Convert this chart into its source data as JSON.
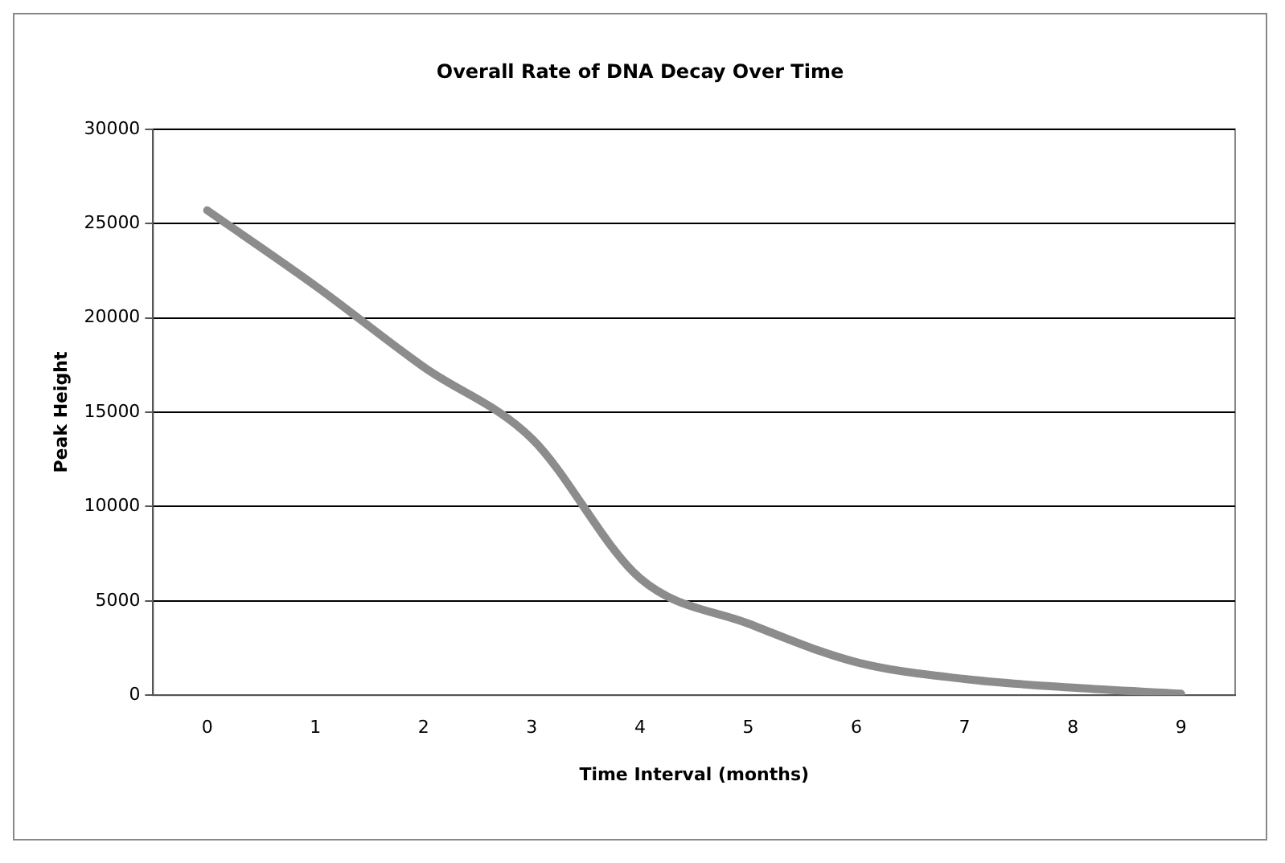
{
  "chart_data": {
    "type": "line",
    "title": "Overall Rate of DNA Decay Over Time",
    "xlabel": "Time Interval (months)",
    "ylabel": "Peak Height",
    "categories": [
      "0",
      "1",
      "2",
      "3",
      "4",
      "5",
      "6",
      "7",
      "8",
      "9"
    ],
    "series": [
      {
        "color": "#8c8c8c",
        "values": [
          25700,
          21700,
          17400,
          13600,
          6200,
          3800,
          1750,
          860,
          400,
          80
        ]
      }
    ],
    "ylim": [
      0,
      30000
    ],
    "yticks": [
      0,
      5000,
      10000,
      15000,
      20000,
      25000,
      30000
    ],
    "grid": "y",
    "legend": false,
    "marker": "none",
    "line_style": "solid"
  }
}
